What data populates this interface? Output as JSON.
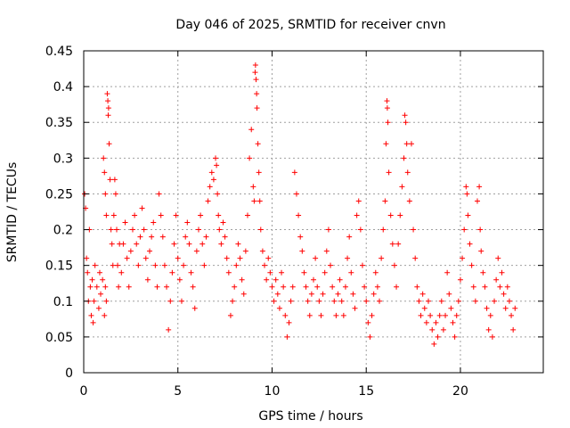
{
  "chart_data": {
    "type": "scatter",
    "title": "Day 046 of 2025, SRMTID for receiver cnvn",
    "xlabel": "GPS time / hours",
    "ylabel": "SRMTID / TECUs",
    "xlim": [
      0,
      24.4
    ],
    "ylim": [
      0,
      0.45
    ],
    "xticks": [
      0,
      5,
      10,
      15,
      20
    ],
    "xtick_labels": [
      "0",
      "5",
      "10",
      "15",
      "20"
    ],
    "yticks": [
      0,
      0.05,
      0.1,
      0.15,
      0.2,
      0.25,
      0.3,
      0.35,
      0.4,
      0.45
    ],
    "ytick_labels": [
      "0",
      "0.05",
      "0.1",
      "0.15",
      "0.2",
      "0.25",
      "0.3",
      "0.35",
      "0.4",
      "0.45"
    ],
    "grid": true,
    "marker": "+",
    "color": "#ff0000",
    "series": [
      {
        "name": "SRMTID",
        "points": [
          [
            0.05,
            0.25
          ],
          [
            0.1,
            0.23
          ],
          [
            0.15,
            0.16
          ],
          [
            0.2,
            0.14
          ],
          [
            0.25,
            0.1
          ],
          [
            0.3,
            0.2
          ],
          [
            0.35,
            0.12
          ],
          [
            0.4,
            0.08
          ],
          [
            0.45,
            0.13
          ],
          [
            0.5,
            0.07
          ],
          [
            0.55,
            0.1
          ],
          [
            0.6,
            0.15
          ],
          [
            0.7,
            0.12
          ],
          [
            0.8,
            0.09
          ],
          [
            0.85,
            0.14
          ],
          [
            0.9,
            0.11
          ],
          [
            1.0,
            0.13
          ],
          [
            1.1,
            0.08
          ],
          [
            1.15,
            0.12
          ],
          [
            1.2,
            0.1
          ],
          [
            1.05,
            0.3
          ],
          [
            1.1,
            0.28
          ],
          [
            1.15,
            0.25
          ],
          [
            1.2,
            0.22
          ],
          [
            1.25,
            0.39
          ],
          [
            1.28,
            0.38
          ],
          [
            1.3,
            0.36
          ],
          [
            1.32,
            0.37
          ],
          [
            1.35,
            0.32
          ],
          [
            1.4,
            0.27
          ],
          [
            1.45,
            0.2
          ],
          [
            1.5,
            0.18
          ],
          [
            1.55,
            0.15
          ],
          [
            1.6,
            0.22
          ],
          [
            1.65,
            0.27
          ],
          [
            1.7,
            0.25
          ],
          [
            1.75,
            0.2
          ],
          [
            1.8,
            0.15
          ],
          [
            1.85,
            0.12
          ],
          [
            1.9,
            0.18
          ],
          [
            2.0,
            0.14
          ],
          [
            2.1,
            0.18
          ],
          [
            2.2,
            0.21
          ],
          [
            2.3,
            0.16
          ],
          [
            2.4,
            0.12
          ],
          [
            2.5,
            0.17
          ],
          [
            2.6,
            0.2
          ],
          [
            2.7,
            0.22
          ],
          [
            2.8,
            0.18
          ],
          [
            2.9,
            0.15
          ],
          [
            3.0,
            0.19
          ],
          [
            3.1,
            0.23
          ],
          [
            3.2,
            0.2
          ],
          [
            3.3,
            0.16
          ],
          [
            3.4,
            0.13
          ],
          [
            3.5,
            0.17
          ],
          [
            3.6,
            0.19
          ],
          [
            3.7,
            0.21
          ],
          [
            3.8,
            0.15
          ],
          [
            3.9,
            0.12
          ],
          [
            4.0,
            0.25
          ],
          [
            4.1,
            0.22
          ],
          [
            4.2,
            0.19
          ],
          [
            4.3,
            0.15
          ],
          [
            4.4,
            0.12
          ],
          [
            4.5,
            0.06
          ],
          [
            4.6,
            0.1
          ],
          [
            4.7,
            0.14
          ],
          [
            4.8,
            0.18
          ],
          [
            4.9,
            0.22
          ],
          [
            5.0,
            0.16
          ],
          [
            5.1,
            0.13
          ],
          [
            5.2,
            0.1
          ],
          [
            5.3,
            0.15
          ],
          [
            5.4,
            0.19
          ],
          [
            5.5,
            0.21
          ],
          [
            5.6,
            0.18
          ],
          [
            5.7,
            0.14
          ],
          [
            5.8,
            0.12
          ],
          [
            5.9,
            0.09
          ],
          [
            6.0,
            0.17
          ],
          [
            6.1,
            0.2
          ],
          [
            6.2,
            0.22
          ],
          [
            6.3,
            0.18
          ],
          [
            6.4,
            0.15
          ],
          [
            6.5,
            0.19
          ],
          [
            6.6,
            0.24
          ],
          [
            6.7,
            0.26
          ],
          [
            6.8,
            0.28
          ],
          [
            6.9,
            0.27
          ],
          [
            7.0,
            0.3
          ],
          [
            7.05,
            0.29
          ],
          [
            7.1,
            0.25
          ],
          [
            7.15,
            0.22
          ],
          [
            7.2,
            0.2
          ],
          [
            7.3,
            0.18
          ],
          [
            7.4,
            0.21
          ],
          [
            7.5,
            0.19
          ],
          [
            7.6,
            0.16
          ],
          [
            7.7,
            0.14
          ],
          [
            7.8,
            0.08
          ],
          [
            7.9,
            0.1
          ],
          [
            8.0,
            0.12
          ],
          [
            8.1,
            0.15
          ],
          [
            8.2,
            0.18
          ],
          [
            8.3,
            0.16
          ],
          [
            8.4,
            0.13
          ],
          [
            8.5,
            0.11
          ],
          [
            8.6,
            0.17
          ],
          [
            8.7,
            0.22
          ],
          [
            8.8,
            0.3
          ],
          [
            8.9,
            0.34
          ],
          [
            9.0,
            0.26
          ],
          [
            9.05,
            0.24
          ],
          [
            9.1,
            0.42
          ],
          [
            9.12,
            0.43
          ],
          [
            9.15,
            0.41
          ],
          [
            9.18,
            0.39
          ],
          [
            9.2,
            0.37
          ],
          [
            9.25,
            0.32
          ],
          [
            9.3,
            0.28
          ],
          [
            9.35,
            0.24
          ],
          [
            9.4,
            0.2
          ],
          [
            9.5,
            0.17
          ],
          [
            9.6,
            0.15
          ],
          [
            9.7,
            0.13
          ],
          [
            9.8,
            0.16
          ],
          [
            9.9,
            0.14
          ],
          [
            10.0,
            0.12
          ],
          [
            10.1,
            0.1
          ],
          [
            10.2,
            0.13
          ],
          [
            10.3,
            0.11
          ],
          [
            10.4,
            0.09
          ],
          [
            10.5,
            0.14
          ],
          [
            10.6,
            0.12
          ],
          [
            10.7,
            0.08
          ],
          [
            10.8,
            0.05
          ],
          [
            10.9,
            0.07
          ],
          [
            11.0,
            0.1
          ],
          [
            11.1,
            0.12
          ],
          [
            11.2,
            0.28
          ],
          [
            11.3,
            0.25
          ],
          [
            11.4,
            0.22
          ],
          [
            11.5,
            0.19
          ],
          [
            11.6,
            0.17
          ],
          [
            11.7,
            0.14
          ],
          [
            11.8,
            0.12
          ],
          [
            11.9,
            0.1
          ],
          [
            12.0,
            0.08
          ],
          [
            12.1,
            0.11
          ],
          [
            12.2,
            0.13
          ],
          [
            12.3,
            0.16
          ],
          [
            12.4,
            0.12
          ],
          [
            12.5,
            0.1
          ],
          [
            12.6,
            0.08
          ],
          [
            12.7,
            0.11
          ],
          [
            12.8,
            0.14
          ],
          [
            12.9,
            0.17
          ],
          [
            13.0,
            0.2
          ],
          [
            13.1,
            0.15
          ],
          [
            13.2,
            0.12
          ],
          [
            13.3,
            0.1
          ],
          [
            13.4,
            0.08
          ],
          [
            13.5,
            0.11
          ],
          [
            13.6,
            0.13
          ],
          [
            13.7,
            0.1
          ],
          [
            13.8,
            0.08
          ],
          [
            13.9,
            0.12
          ],
          [
            14.0,
            0.16
          ],
          [
            14.1,
            0.19
          ],
          [
            14.2,
            0.14
          ],
          [
            14.3,
            0.11
          ],
          [
            14.4,
            0.09
          ],
          [
            14.5,
            0.22
          ],
          [
            14.6,
            0.24
          ],
          [
            14.7,
            0.2
          ],
          [
            14.8,
            0.15
          ],
          [
            14.9,
            0.12
          ],
          [
            15.0,
            0.1
          ],
          [
            15.1,
            0.07
          ],
          [
            15.2,
            0.05
          ],
          [
            15.3,
            0.08
          ],
          [
            15.4,
            0.11
          ],
          [
            15.5,
            0.14
          ],
          [
            15.6,
            0.12
          ],
          [
            15.7,
            0.1
          ],
          [
            15.8,
            0.16
          ],
          [
            15.9,
            0.2
          ],
          [
            16.0,
            0.24
          ],
          [
            16.05,
            0.32
          ],
          [
            16.1,
            0.38
          ],
          [
            16.12,
            0.37
          ],
          [
            16.15,
            0.35
          ],
          [
            16.2,
            0.28
          ],
          [
            16.3,
            0.22
          ],
          [
            16.4,
            0.18
          ],
          [
            16.5,
            0.15
          ],
          [
            16.6,
            0.12
          ],
          [
            16.7,
            0.18
          ],
          [
            16.8,
            0.22
          ],
          [
            16.9,
            0.26
          ],
          [
            17.0,
            0.3
          ],
          [
            17.05,
            0.36
          ],
          [
            17.1,
            0.35
          ],
          [
            17.15,
            0.32
          ],
          [
            17.2,
            0.28
          ],
          [
            17.3,
            0.24
          ],
          [
            17.4,
            0.32
          ],
          [
            17.5,
            0.2
          ],
          [
            17.6,
            0.16
          ],
          [
            17.7,
            0.12
          ],
          [
            17.8,
            0.1
          ],
          [
            17.9,
            0.08
          ],
          [
            18.0,
            0.11
          ],
          [
            18.1,
            0.09
          ],
          [
            18.2,
            0.07
          ],
          [
            18.3,
            0.1
          ],
          [
            18.4,
            0.08
          ],
          [
            18.5,
            0.06
          ],
          [
            18.6,
            0.04
          ],
          [
            18.7,
            0.07
          ],
          [
            18.8,
            0.05
          ],
          [
            18.9,
            0.08
          ],
          [
            19.0,
            0.1
          ],
          [
            19.1,
            0.06
          ],
          [
            19.2,
            0.08
          ],
          [
            19.3,
            0.14
          ],
          [
            19.4,
            0.11
          ],
          [
            19.5,
            0.09
          ],
          [
            19.6,
            0.07
          ],
          [
            19.7,
            0.05
          ],
          [
            19.8,
            0.08
          ],
          [
            19.9,
            0.1
          ],
          [
            20.0,
            0.13
          ],
          [
            20.1,
            0.16
          ],
          [
            20.2,
            0.2
          ],
          [
            20.3,
            0.26
          ],
          [
            20.35,
            0.25
          ],
          [
            20.4,
            0.22
          ],
          [
            20.5,
            0.18
          ],
          [
            20.6,
            0.15
          ],
          [
            20.7,
            0.12
          ],
          [
            20.8,
            0.1
          ],
          [
            20.9,
            0.24
          ],
          [
            21.0,
            0.26
          ],
          [
            21.05,
            0.2
          ],
          [
            21.1,
            0.17
          ],
          [
            21.2,
            0.14
          ],
          [
            21.3,
            0.12
          ],
          [
            21.4,
            0.09
          ],
          [
            21.5,
            0.06
          ],
          [
            21.6,
            0.08
          ],
          [
            21.7,
            0.05
          ],
          [
            21.8,
            0.1
          ],
          [
            21.9,
            0.13
          ],
          [
            22.0,
            0.16
          ],
          [
            22.1,
            0.12
          ],
          [
            22.2,
            0.14
          ],
          [
            22.3,
            0.11
          ],
          [
            22.4,
            0.09
          ],
          [
            22.5,
            0.12
          ],
          [
            22.6,
            0.1
          ],
          [
            22.7,
            0.08
          ],
          [
            22.8,
            0.06
          ],
          [
            22.9,
            0.09
          ]
        ]
      }
    ]
  }
}
